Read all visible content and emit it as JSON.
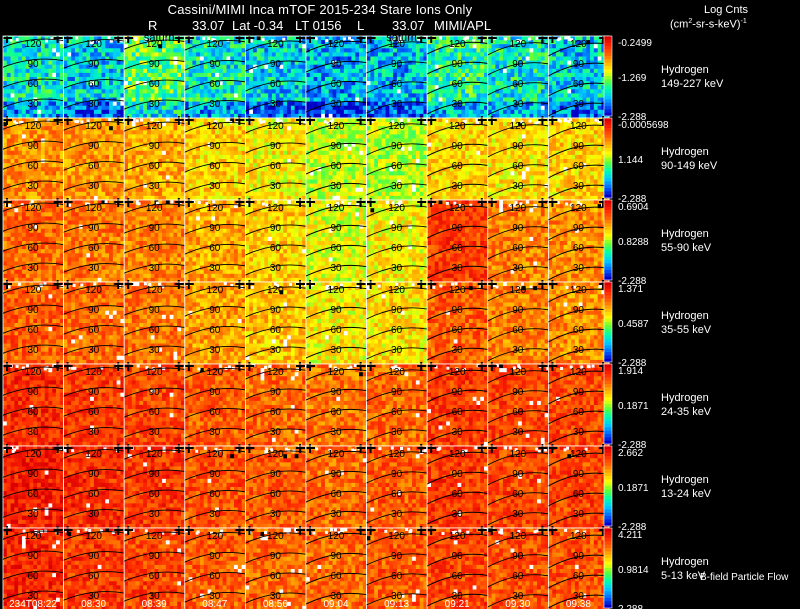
{
  "header": {
    "title": "Cassini/MIMI Inca mTOF  2015-234   Stare   Ions Only",
    "subtitle_r_label": "R",
    "subtitle_r_value": "33.07",
    "subtitle_lat": "Lat -0.34",
    "subtitle_lt": "LT 0156",
    "subtitle_l_label": "L",
    "subtitle_l_value": "33.07",
    "subtitle_source": "MIMI/APL",
    "units_title": "Log Cnts",
    "units_base": "(cm",
    "units_sup": "2",
    "units_rest": "-sr-s-keV)",
    "units_tail": "-1",
    "flow_label": "B-field Particle Flow"
  },
  "chart_data": {
    "type": "heatmap",
    "title": "Cassini/MIMI Inca mTOF  2015-234   Stare   Ions Only",
    "x_tick_labels": [
      "234T08:22",
      "08:30",
      "08:39",
      "08:47",
      "08:56",
      "09:04",
      "09:13",
      "09:21",
      "09:30",
      "09:38"
    ],
    "panel_annotations": [
      {
        "text": "saturn",
        "column": 2,
        "row": 0
      },
      {
        "text": "saturn",
        "column": 6,
        "row": 0
      }
    ],
    "grid_labels": [
      "120",
      "90",
      "60",
      "30"
    ],
    "colormap": [
      "#0000c8",
      "#0064ff",
      "#00c8ff",
      "#00ffaa",
      "#64ff32",
      "#ffff00",
      "#ffb400",
      "#ff6400",
      "#ff2800",
      "#dc0000"
    ],
    "rows": [
      {
        "species": "Hydrogen",
        "energy": "149-227 keV",
        "cbar_max": "-0.2499",
        "cbar_mid": "-1.269",
        "cbar_min": "-2.288",
        "levels": [
          0.3,
          0.25,
          0.4,
          0.3,
          0.25,
          0.2,
          0.22,
          0.35,
          0.3,
          0.25
        ]
      },
      {
        "species": "Hydrogen",
        "energy": "90-149 keV",
        "cbar_max": "-0.0005698",
        "cbar_mid": "1.144",
        "cbar_min": "-2.288",
        "levels": [
          0.72,
          0.7,
          0.68,
          0.62,
          0.58,
          0.52,
          0.5,
          0.62,
          0.6,
          0.62
        ]
      },
      {
        "species": "Hydrogen",
        "energy": "55-90 keV",
        "cbar_max": "0.6904",
        "cbar_mid": "0.8288",
        "cbar_min": "-2.288",
        "levels": [
          0.78,
          0.76,
          0.74,
          0.68,
          0.62,
          0.55,
          0.58,
          0.85,
          0.74,
          0.72
        ]
      },
      {
        "species": "Hydrogen",
        "energy": "35-55 keV",
        "cbar_max": "1.371",
        "cbar_mid": "0.4587",
        "cbar_min": "-2.288",
        "levels": [
          0.8,
          0.78,
          0.76,
          0.7,
          0.64,
          0.58,
          0.6,
          0.8,
          0.74,
          0.72
        ]
      },
      {
        "species": "Hydrogen",
        "energy": "24-35 keV",
        "cbar_max": "1.914",
        "cbar_mid": "0.1871",
        "cbar_min": "-2.288",
        "levels": [
          0.88,
          0.86,
          0.84,
          0.8,
          0.78,
          0.76,
          0.78,
          0.86,
          0.84,
          0.84
        ]
      },
      {
        "species": "Hydrogen",
        "energy": "13-24 keV",
        "cbar_max": "2.662",
        "cbar_mid": "0.1871",
        "cbar_min": "-2.288",
        "levels": [
          0.92,
          0.88,
          0.86,
          0.82,
          0.8,
          0.78,
          0.8,
          0.86,
          0.84,
          0.84
        ]
      },
      {
        "species": "Hydrogen",
        "energy": "5-13 keV",
        "cbar_max": "4.211",
        "cbar_mid": "0.9814",
        "cbar_min": "2.288",
        "levels": [
          0.9,
          0.86,
          0.84,
          0.8,
          0.78,
          0.78,
          0.8,
          0.84,
          0.82,
          0.82
        ]
      }
    ]
  }
}
